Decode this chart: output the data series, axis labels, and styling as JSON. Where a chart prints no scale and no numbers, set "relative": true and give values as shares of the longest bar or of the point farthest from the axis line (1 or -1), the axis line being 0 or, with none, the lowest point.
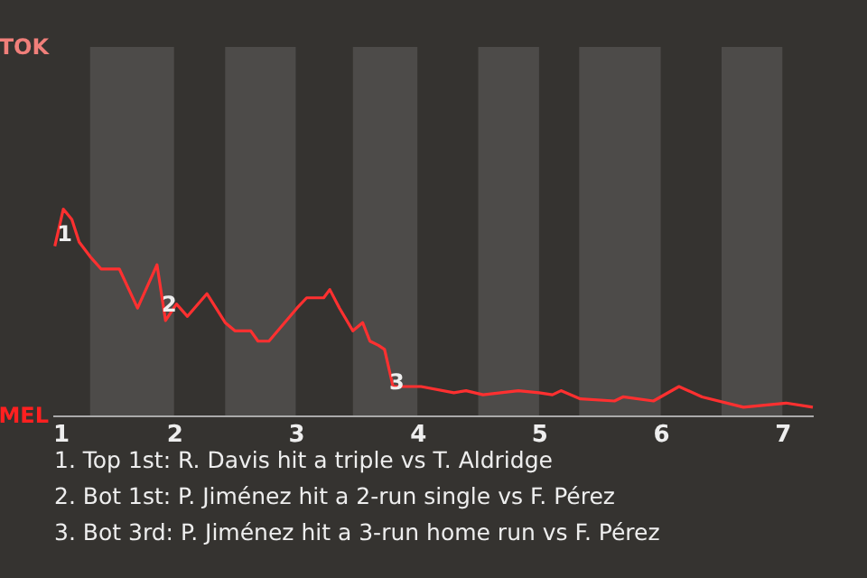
{
  "chart_data": {
    "type": "line",
    "relative": true,
    "x": [
      1.02,
      1.09,
      1.16,
      1.22,
      1.31,
      1.4,
      1.55,
      1.7,
      1.86,
      1.93,
      2.02,
      2.11,
      2.27,
      2.42,
      2.5,
      2.63,
      2.69,
      2.78,
      3.01,
      3.09,
      3.23,
      3.28,
      3.36,
      3.47,
      3.55,
      3.61,
      3.68,
      3.73,
      3.8,
      4.03,
      4.3,
      4.4,
      4.54,
      4.83,
      5,
      5.11,
      5.18,
      5.34,
      5.62,
      5.69,
      5.94,
      6.15,
      6.34,
      6.68,
      7.03,
      7.25
    ],
    "series": [
      {
        "color": "#ff3030",
        "values": [
          0.82,
          1,
          0.95,
          0.84,
          0.77,
          0.71,
          0.71,
          0.52,
          0.73,
          0.46,
          0.54,
          0.48,
          0.59,
          0.45,
          0.41,
          0.41,
          0.36,
          0.36,
          0.52,
          0.57,
          0.57,
          0.61,
          0.52,
          0.41,
          0.45,
          0.36,
          0.34,
          0.32,
          0.14,
          0.14,
          0.11,
          0.12,
          0.1,
          0.12,
          0.11,
          0.1,
          0.12,
          0.08,
          0.07,
          0.09,
          0.07,
          0.14,
          0.09,
          0.04,
          0.06,
          0.04
        ]
      }
    ],
    "xlim": [
      1,
      7.25
    ],
    "xticks": [
      1,
      2,
      3,
      4,
      5,
      6,
      7
    ],
    "bands": [
      {
        "axis": "x",
        "from": 1.31,
        "to": 2,
        "color": "#4d4b49"
      },
      {
        "axis": "x",
        "from": 2.42,
        "to": 3,
        "color": "#4d4b49"
      },
      {
        "axis": "x",
        "from": 3.47,
        "to": 4,
        "color": "#4d4b49"
      },
      {
        "axis": "x",
        "from": 4.5,
        "to": 5,
        "color": "#4d4b49"
      },
      {
        "axis": "x",
        "from": 5.33,
        "to": 6,
        "color": "#4d4b49"
      },
      {
        "axis": "x",
        "from": 6.5,
        "to": 7,
        "color": "#4d4b49"
      }
    ],
    "annotations": [
      {
        "text": "1",
        "x": 1.1,
        "y": 0.88
      },
      {
        "text": "2",
        "x": 1.96,
        "y": 0.54
      },
      {
        "text": "3",
        "x": 3.83,
        "y": 0.16
      },
      "TOK",
      "MEL",
      "1. Top 1st: R. Davis hit a triple vs T. Aldridge",
      "2. Bot 1st: P. Jiménez hit a 2-run single vs F. Pérez",
      "3. Bot 3rd: P. Jiménez hit a 3-run home run vs F. Pérez"
    ]
  }
}
